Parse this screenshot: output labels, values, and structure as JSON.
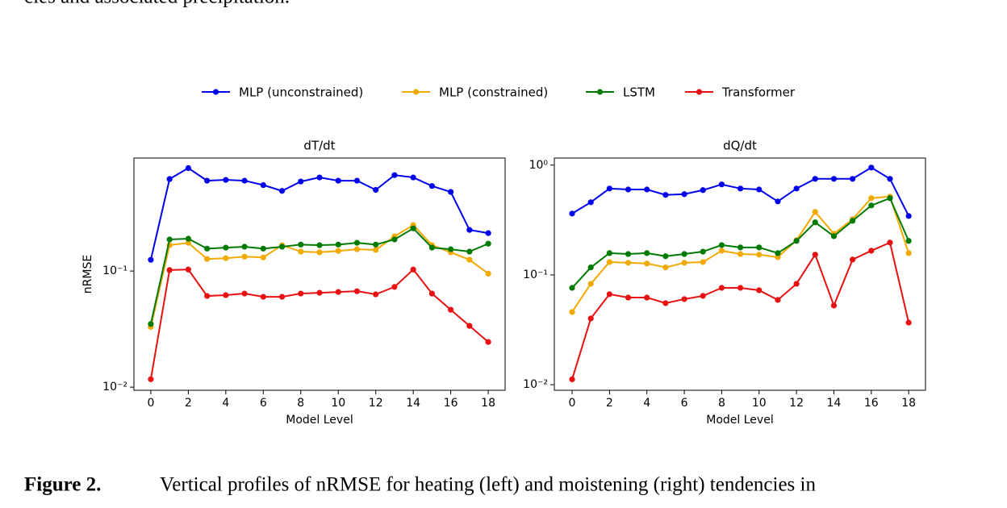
{
  "page": {
    "top_text": "cies and associated precipitation.",
    "caption": {
      "label": "Figure 2.",
      "text": "Vertical profiles of nRMSE for heating (left) and moistening (right) tendencies in"
    }
  },
  "chart_data": [
    {
      "type": "line",
      "title": "dT/dt",
      "xlabel": "Model Level",
      "ylabel": "nRMSE",
      "log_y": true,
      "x": [
        0,
        1,
        2,
        3,
        4,
        5,
        6,
        7,
        8,
        9,
        10,
        11,
        12,
        13,
        14,
        15,
        16,
        17,
        18
      ],
      "xlim": [
        -0.9,
        18.9
      ],
      "xticks": [
        0,
        2,
        4,
        6,
        8,
        10,
        12,
        14,
        16,
        18
      ],
      "ylim": [
        0.0094,
        0.94
      ],
      "yticks": [
        {
          "value": 0.01,
          "label": "10⁻²"
        },
        {
          "value": 0.1,
          "label": "10⁻¹"
        }
      ],
      "series": [
        {
          "name": "MLP (unconstrained)",
          "color": "#0000ee",
          "values": [
            0.125,
            0.62,
            0.77,
            0.6,
            0.61,
            0.6,
            0.55,
            0.49,
            0.59,
            0.64,
            0.6,
            0.6,
            0.5,
            0.67,
            0.64,
            0.54,
            0.48,
            0.226,
            0.212
          ]
        },
        {
          "name": "MLP (constrained)",
          "color": "#f2a900",
          "values": [
            0.033,
            0.167,
            0.175,
            0.127,
            0.129,
            0.133,
            0.131,
            0.167,
            0.147,
            0.145,
            0.149,
            0.154,
            0.152,
            0.199,
            0.249,
            0.167,
            0.145,
            0.125,
            0.095
          ]
        },
        {
          "name": "LSTM",
          "color": "#007a00",
          "values": [
            0.035,
            0.187,
            0.19,
            0.156,
            0.159,
            0.162,
            0.156,
            0.162,
            0.169,
            0.167,
            0.169,
            0.175,
            0.169,
            0.187,
            0.233,
            0.159,
            0.154,
            0.147,
            0.172
          ]
        },
        {
          "name": "Transformer",
          "color": "#e81010",
          "values": [
            0.0117,
            0.102,
            0.103,
            0.061,
            0.062,
            0.064,
            0.06,
            0.06,
            0.064,
            0.065,
            0.066,
            0.067,
            0.063,
            0.073,
            0.103,
            0.064,
            0.0464,
            0.0337,
            0.0245
          ]
        }
      ]
    },
    {
      "type": "line",
      "title": "dQ/dt",
      "xlabel": "Model Level",
      "log_y": true,
      "x": [
        0,
        1,
        2,
        3,
        4,
        5,
        6,
        7,
        8,
        9,
        10,
        11,
        12,
        13,
        14,
        15,
        16,
        17,
        18
      ],
      "xlim": [
        -0.95,
        18.9
      ],
      "xticks": [
        0,
        2,
        4,
        6,
        8,
        10,
        12,
        14,
        16,
        18
      ],
      "ylim": [
        0.0089,
        1.16
      ],
      "yticks": [
        {
          "value": 0.01,
          "label": "10⁻²"
        },
        {
          "value": 0.1,
          "label": "10⁻¹"
        },
        {
          "value": 1,
          "label": "10⁰"
        }
      ],
      "series": [
        {
          "color": "#0000ee",
          "values": [
            0.362,
            0.459,
            0.612,
            0.6,
            0.6,
            0.535,
            0.544,
            0.592,
            0.667,
            0.612,
            0.6,
            0.467,
            0.612,
            0.75,
            0.75,
            0.75,
            0.95,
            0.75,
            0.344
          ]
        },
        {
          "color": "#f2a900",
          "values": [
            0.0459,
            0.083,
            0.131,
            0.129,
            0.127,
            0.117,
            0.129,
            0.131,
            0.166,
            0.155,
            0.153,
            0.145,
            0.207,
            0.375,
            0.237,
            0.321,
            0.5,
            0.517,
            0.158
          ]
        },
        {
          "color": "#007a00",
          "values": [
            0.0762,
            0.117,
            0.158,
            0.155,
            0.158,
            0.148,
            0.155,
            0.163,
            0.187,
            0.178,
            0.178,
            0.158,
            0.204,
            0.301,
            0.225,
            0.311,
            0.429,
            0.5,
            0.204
          ]
        },
        {
          "color": "#e81010",
          "values": [
            0.0112,
            0.0401,
            0.0667,
            0.0622,
            0.0622,
            0.0553,
            0.0602,
            0.0644,
            0.0762,
            0.0762,
            0.0725,
            0.0592,
            0.083,
            0.153,
            0.0526,
            0.138,
            0.166,
            0.197,
            0.0368
          ]
        }
      ]
    }
  ]
}
